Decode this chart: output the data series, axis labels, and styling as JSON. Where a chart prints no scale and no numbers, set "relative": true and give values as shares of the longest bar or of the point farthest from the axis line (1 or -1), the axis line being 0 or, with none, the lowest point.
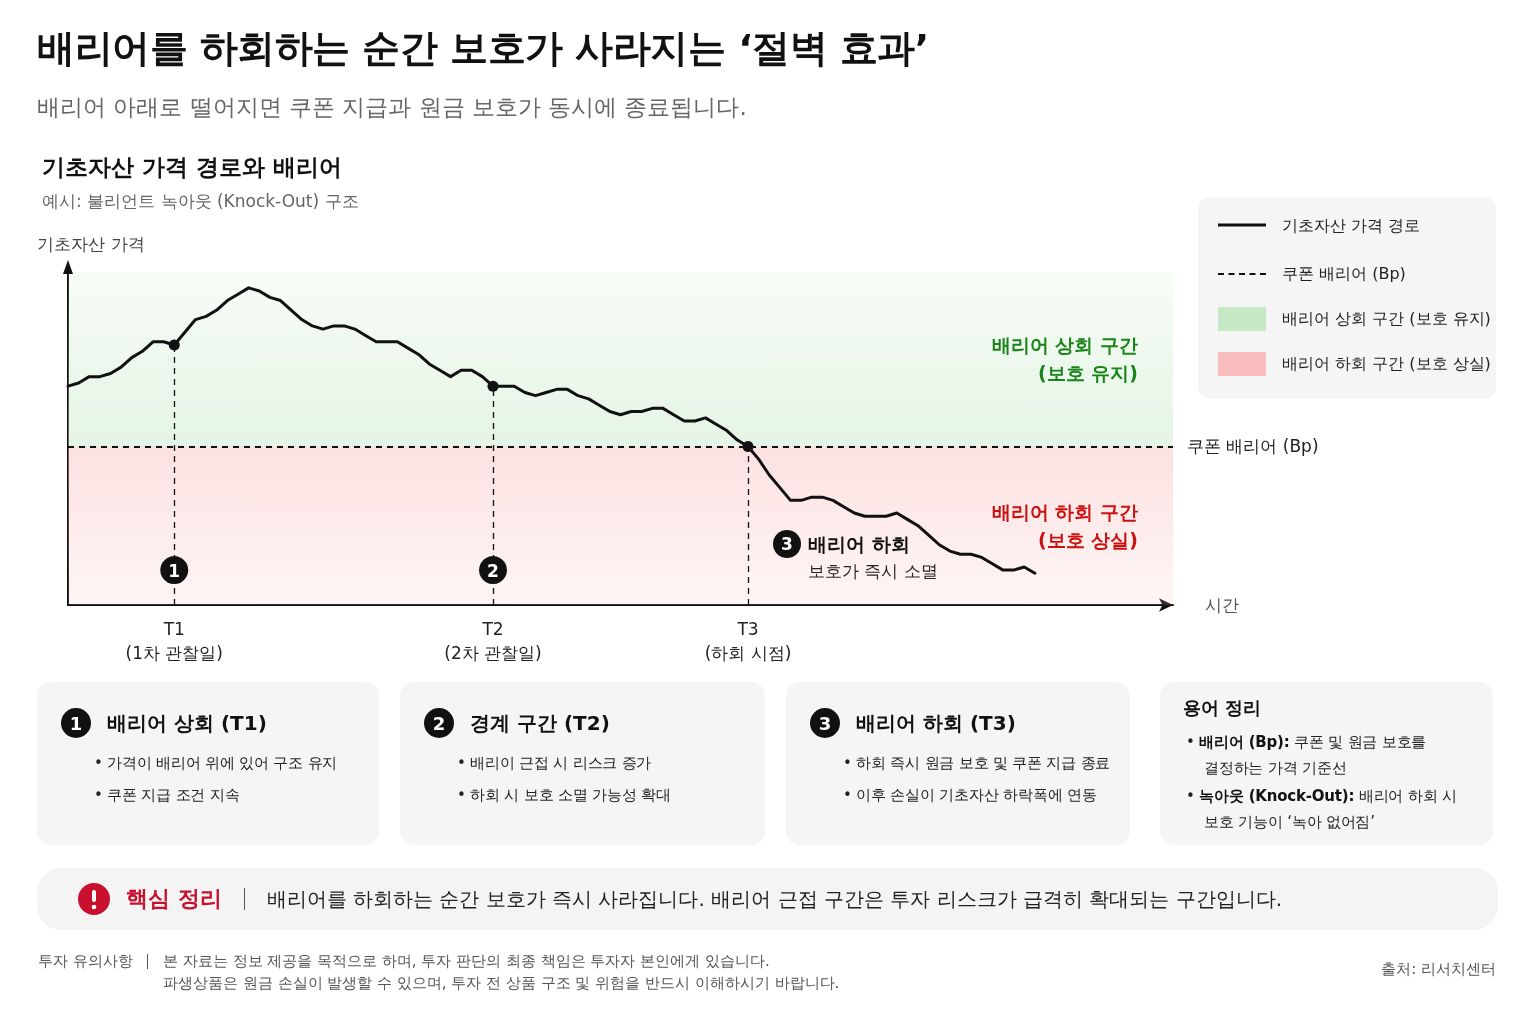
{
  "chart_data": [
    {
      "type": "other",
      "title": "배리어를 하회하는 순간 보호가 사라지는 ‘절벽 효과’",
      "subtitle": "배리어 아래로 떨어지면 쿠폰 지급과 원금 보호가 동시에 종료됩니다."
    },
    {
      "type": "line",
      "title": "기초자산 가격 경로와 배리어",
      "subtitle": "예시: 불리언트 녹아웃 (Knock-Out) 구조",
      "xlabel": "시간",
      "ylabel": "기초자산 가격",
      "relative": true,
      "categories": [
        null,
        null,
        null,
        null,
        null,
        null,
        null,
        null,
        null,
        null,
        "T1\n(1차 관찰일)",
        null,
        null,
        null,
        null,
        null,
        null,
        null,
        null,
        null,
        null,
        null,
        null,
        null,
        null,
        null,
        null,
        null,
        null,
        null,
        null,
        null,
        null,
        null,
        null,
        null,
        null,
        null,
        null,
        null,
        "T2\n(2차 관찰일)",
        null,
        null,
        null,
        null,
        null,
        null,
        null,
        null,
        null,
        null,
        null,
        null,
        null,
        null,
        null,
        null,
        null,
        null,
        null,
        null,
        null,
        null,
        null,
        "T3\n(하회 시점)",
        null,
        null,
        null,
        null,
        null,
        null,
        null,
        null,
        null,
        null,
        null,
        null,
        null,
        null,
        null,
        null,
        null,
        null,
        null,
        null,
        null,
        null,
        null,
        null,
        null,
        null,
        null,
        null,
        null,
        null,
        null,
        null,
        null,
        null,
        null,
        null,
        null,
        null,
        null,
        null
      ],
      "series": [
        {
          "name": "기초자산 가격 경로",
          "color": "#111111",
          "values": [
            0.69,
            0.7,
            0.72,
            0.72,
            0.73,
            0.75,
            0.78,
            0.8,
            0.83,
            0.83,
            0.82,
            0.86,
            0.9,
            0.91,
            0.93,
            0.96,
            0.98,
            1.0,
            0.99,
            0.97,
            0.96,
            0.93,
            0.9,
            0.88,
            0.87,
            0.88,
            0.88,
            0.87,
            0.85,
            0.83,
            0.83,
            0.83,
            0.81,
            0.79,
            0.76,
            0.74,
            0.72,
            0.74,
            0.74,
            0.72,
            0.69,
            0.69,
            0.69,
            0.67,
            0.66,
            0.67,
            0.68,
            0.68,
            0.66,
            0.65,
            0.63,
            0.61,
            0.6,
            0.61,
            0.61,
            0.62,
            0.62,
            0.6,
            0.58,
            0.58,
            0.59,
            0.57,
            0.55,
            0.52,
            0.5,
            0.46,
            0.41,
            0.37,
            0.33,
            0.33,
            0.34,
            0.34,
            0.33,
            0.31,
            0.29,
            0.28,
            0.28,
            0.28,
            0.29,
            0.27,
            0.25,
            0.22,
            0.19,
            0.17,
            0.16,
            0.16,
            0.15,
            0.13,
            0.11,
            0.11,
            0.12,
            0.1,
            null,
            null,
            null,
            null,
            null,
            null,
            null,
            null,
            null,
            null,
            null,
            null,
            null
          ]
        },
        {
          "type": "lollipop",
          "x": [
            "T1\n(1차 관찰일)",
            "T2\n(2차 관찰일)",
            "T3\n(하회 시점)"
          ],
          "values": [
            0.82,
            0.69,
            0.5
          ],
          "color": "#111111",
          "marker": "circle",
          "line_style": "dashed"
        }
      ],
      "ref_lines": [
        {
          "axis": "y",
          "value": 0.5,
          "label": "쿠폰 배리어 (Bp)",
          "line_style": "dashed",
          "color": "#111111"
        }
      ],
      "bands": [
        {
          "axis": "y",
          "from": 0.5,
          "to": 1.05,
          "label": "배리어 상회 구간\n(보호 유지)",
          "color": "#c5e8c5"
        },
        {
          "axis": "y",
          "from": 0,
          "to": 0.5,
          "label": "배리어 하회 구간\n(보호 상실)",
          "color": "#f9bcbc"
        }
      ],
      "annotations": [
        {
          "text": "1",
          "x": "T1\n(1차 관찰일)",
          "y": 0.11
        },
        {
          "text": "2",
          "x": "T2\n(2차 관찰일)",
          "y": 0.11
        },
        "3",
        "배리어 하회\n보호가 즉시 소멸"
      ],
      "legend": "top right",
      "line_style": "solid"
    },
    {
      "type": "other",
      "title": "배리어 상회 (T1)",
      "annotations": [
        "1",
        "• 가격이 배리어 위에 있어 구조 유지",
        "• 쿠폰 지급 조건 지속"
      ]
    },
    {
      "type": "other",
      "title": "경계 구간 (T2)",
      "annotations": [
        "2",
        "• 배리이 근접 시 리스크 증가",
        "• 하회 시 보호 소멸 가능성 확대"
      ]
    },
    {
      "type": "other",
      "title": "배리어 하회 (T3)",
      "annotations": [
        "3",
        "• 하회 즉시 원금 보호 및 쿠폰 지급 종료",
        "• 이후 손실이 기초자산 하락폭에 연동"
      ]
    },
    {
      "type": "other",
      "title": "용어 정리",
      "annotations": [
        "• 배리어 (Bp): 쿠폰 및 원금 보호를\n결정하는 가격 기준선",
        "• 녹아웃 (Knock-Out): 배리어 하회 시\n보호 기능이 ‘녹아 없어짐’"
      ]
    },
    {
      "type": "other",
      "title": "핵심 정리",
      "annotations": [
        "배리어를 하회하는 순간 보호가 즉시 사라집니다. 배리어 근접 구간은 투자 리스크가 급격히 확대되는 구간입니다."
      ]
    },
    {
      "type": "other",
      "title": "투자 유의사항",
      "annotations": [
        "본 자료는 정보 제공을 목적으로 하며, 투자 판단의 최종 책임은 투자자 본인에게 있습니다.\n파생상품은 원금 손실이 발생할 수 있으며, 투자 전 상품 구조 및 위험을 반드시 이해하시기 바랍니다.",
        "출처: 리서치센터"
      ]
    }
  ]
}
